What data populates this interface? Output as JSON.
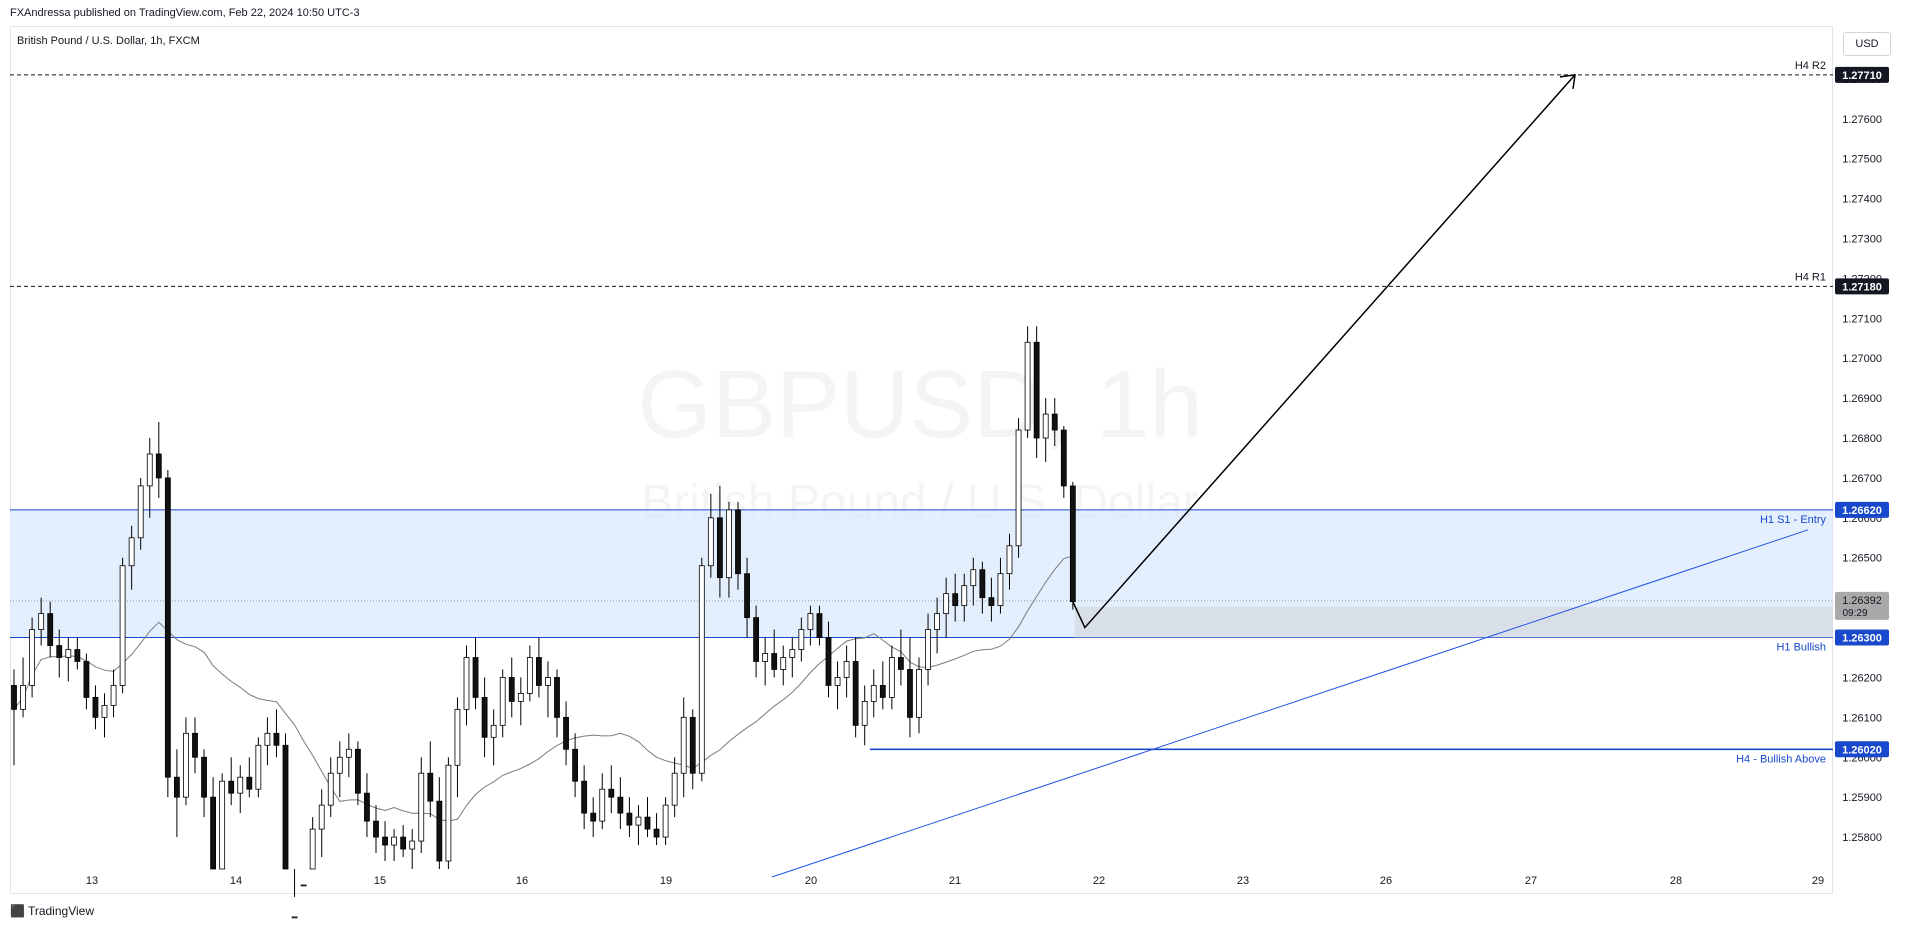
{
  "header": {
    "published_line": "FXAndressa published on TradingView.com, Feb 22, 2024 10:50 UTC-3",
    "symbol_title": "British Pound / U.S. Dollar, 1h, FXCM",
    "currency_button": "USD"
  },
  "watermark": {
    "main": "GBPUSD, 1h",
    "sub": "British Pound / U.S. Dollar"
  },
  "footer": {
    "brand": "TradingView"
  },
  "colors": {
    "bull": "#ffffff",
    "bear": "#000000",
    "candle_outline": "#000000",
    "zone_fill": "#dbeafc",
    "level_blue": "#1848cc",
    "ma_line": "#787b86",
    "current_price_tag": "#a9a9a9",
    "trend_line": "#1e53e5"
  },
  "chart_data": {
    "type": "candlestick",
    "symbol": "GBPUSD",
    "timeframe": "1h",
    "y_axis": {
      "ylim": [
        1.2572,
        1.2783
      ],
      "ticks": [
        "1.25800",
        "1.25900",
        "1.26000",
        "1.26100",
        "1.26200",
        "1.26300",
        "1.26400",
        "1.26500",
        "1.26600",
        "1.26700",
        "1.26800",
        "1.26900",
        "1.27000",
        "1.27100",
        "1.27200",
        "1.27300",
        "1.27400",
        "1.27500",
        "1.27600",
        "1.27700"
      ]
    },
    "x_axis": {
      "tick_labels": [
        "13",
        "14",
        "15",
        "16",
        "19",
        "20",
        "21",
        "22",
        "23",
        "26",
        "27",
        "28",
        "29"
      ]
    },
    "levels": [
      {
        "name": "H4 R2",
        "price": 1.2771,
        "price_label": "1.27710",
        "style": "dashed",
        "color": "#131722"
      },
      {
        "name": "H4 R1",
        "price": 1.2718,
        "price_label": "1.27180",
        "style": "dashed",
        "color": "#131722"
      },
      {
        "name": "H1 S1 - Entry",
        "price": 1.2662,
        "price_label": "1.26620",
        "style": "solid",
        "color": "#1848cc"
      },
      {
        "name": "H1 Bullish",
        "price": 1.263,
        "price_label": "1.26300",
        "style": "solid",
        "color": "#1848cc"
      },
      {
        "name": "H4 - Bullish Above",
        "price": 1.2602,
        "price_label": "1.26020",
        "style": "solid",
        "color": "#1848cc"
      }
    ],
    "zone": {
      "top": 1.2662,
      "bottom": 1.263
    },
    "current_price": {
      "price": 1.26392,
      "price_label": "1.26392",
      "countdown": "09:29"
    },
    "candles": [
      [
        1.2618,
        1.2622,
        1.2598,
        1.2612
      ],
      [
        1.2612,
        1.2625,
        1.261,
        1.2618
      ],
      [
        1.2618,
        1.2635,
        1.2615,
        1.2632
      ],
      [
        1.2632,
        1.264,
        1.2628,
        1.2636
      ],
      [
        1.2636,
        1.2639,
        1.2625,
        1.2628
      ],
      [
        1.2628,
        1.2632,
        1.262,
        1.2625
      ],
      [
        1.2625,
        1.263,
        1.2619,
        1.2627
      ],
      [
        1.2627,
        1.263,
        1.2622,
        1.2624
      ],
      [
        1.2624,
        1.2626,
        1.2612,
        1.2615
      ],
      [
        1.2615,
        1.2618,
        1.2607,
        1.261
      ],
      [
        1.261,
        1.2616,
        1.2605,
        1.2613
      ],
      [
        1.2613,
        1.2622,
        1.261,
        1.2618
      ],
      [
        1.2618,
        1.265,
        1.2616,
        1.2648
      ],
      [
        1.2648,
        1.2658,
        1.2642,
        1.2655
      ],
      [
        1.2655,
        1.267,
        1.2652,
        1.2668
      ],
      [
        1.2668,
        1.268,
        1.266,
        1.2676
      ],
      [
        1.2676,
        1.2684,
        1.2665,
        1.267
      ],
      [
        1.267,
        1.2672,
        1.259,
        1.2595
      ],
      [
        1.2595,
        1.2602,
        1.258,
        1.259
      ],
      [
        1.259,
        1.261,
        1.2588,
        1.2606
      ],
      [
        1.2606,
        1.261,
        1.2596,
        1.26
      ],
      [
        1.26,
        1.2602,
        1.2585,
        1.259
      ],
      [
        1.259,
        1.2595,
        1.256,
        1.2565
      ],
      [
        1.2565,
        1.2596,
        1.2562,
        1.2594
      ],
      [
        1.2594,
        1.26,
        1.2588,
        1.2591
      ],
      [
        1.2591,
        1.2598,
        1.2586,
        1.2595
      ],
      [
        1.2595,
        1.26,
        1.259,
        1.2592
      ],
      [
        1.2592,
        1.2605,
        1.259,
        1.2603
      ],
      [
        1.2603,
        1.261,
        1.2598,
        1.2606
      ],
      [
        1.2606,
        1.2612,
        1.26,
        1.2603
      ],
      [
        1.2603,
        1.2606,
        1.255,
        1.2555
      ],
      [
        1.2555,
        1.2565,
        1.2545,
        1.256
      ],
      [
        1.256,
        1.2572,
        1.2555,
        1.2568
      ],
      [
        1.2568,
        1.2585,
        1.2565,
        1.2582
      ],
      [
        1.2582,
        1.2592,
        1.2575,
        1.2588
      ],
      [
        1.2588,
        1.26,
        1.2585,
        1.2596
      ],
      [
        1.2596,
        1.2604,
        1.259,
        1.26
      ],
      [
        1.26,
        1.2606,
        1.2595,
        1.2602
      ],
      [
        1.2602,
        1.2604,
        1.2588,
        1.2591
      ],
      [
        1.2591,
        1.2596,
        1.258,
        1.2584
      ],
      [
        1.2584,
        1.2588,
        1.2576,
        1.258
      ],
      [
        1.258,
        1.2584,
        1.2574,
        1.2578
      ],
      [
        1.2578,
        1.2582,
        1.2574,
        1.258
      ],
      [
        1.258,
        1.2583,
        1.2575,
        1.2577
      ],
      [
        1.2577,
        1.2582,
        1.2572,
        1.2579
      ],
      [
        1.2579,
        1.26,
        1.2576,
        1.2596
      ],
      [
        1.2596,
        1.2604,
        1.2585,
        1.2589
      ],
      [
        1.2589,
        1.2595,
        1.257,
        1.2574
      ],
      [
        1.2574,
        1.26,
        1.2572,
        1.2598
      ],
      [
        1.2598,
        1.2615,
        1.259,
        1.2612
      ],
      [
        1.2612,
        1.2628,
        1.2608,
        1.2625
      ],
      [
        1.2625,
        1.263,
        1.2612,
        1.2615
      ],
      [
        1.2615,
        1.262,
        1.26,
        1.2605
      ],
      [
        1.2605,
        1.2612,
        1.2598,
        1.2608
      ],
      [
        1.2608,
        1.2622,
        1.2605,
        1.262
      ],
      [
        1.262,
        1.2625,
        1.261,
        1.2614
      ],
      [
        1.2614,
        1.262,
        1.2608,
        1.2616
      ],
      [
        1.2616,
        1.2628,
        1.2614,
        1.2625
      ],
      [
        1.2625,
        1.263,
        1.2615,
        1.2618
      ],
      [
        1.2618,
        1.2624,
        1.261,
        1.262
      ],
      [
        1.262,
        1.2622,
        1.2605,
        1.261
      ],
      [
        1.261,
        1.2614,
        1.2598,
        1.2602
      ],
      [
        1.2602,
        1.2606,
        1.259,
        1.2594
      ],
      [
        1.2594,
        1.2598,
        1.2582,
        1.2586
      ],
      [
        1.2586,
        1.259,
        1.258,
        1.2584
      ],
      [
        1.2584,
        1.2596,
        1.2582,
        1.2592
      ],
      [
        1.2592,
        1.2598,
        1.2586,
        1.259
      ],
      [
        1.259,
        1.2595,
        1.2582,
        1.2586
      ],
      [
        1.2586,
        1.259,
        1.258,
        1.2583
      ],
      [
        1.2583,
        1.2588,
        1.2578,
        1.2585
      ],
      [
        1.2585,
        1.259,
        1.258,
        1.2582
      ],
      [
        1.2582,
        1.2586,
        1.2578,
        1.258
      ],
      [
        1.258,
        1.259,
        1.2578,
        1.2588
      ],
      [
        1.2588,
        1.26,
        1.2585,
        1.2596
      ],
      [
        1.2596,
        1.2615,
        1.259,
        1.261
      ],
      [
        1.261,
        1.2612,
        1.2592,
        1.2596
      ],
      [
        1.2596,
        1.265,
        1.2594,
        1.2648
      ],
      [
        1.2648,
        1.2666,
        1.2645,
        1.266
      ],
      [
        1.266,
        1.2668,
        1.264,
        1.2645
      ],
      [
        1.2645,
        1.2664,
        1.264,
        1.2662
      ],
      [
        1.2662,
        1.2664,
        1.2642,
        1.2646
      ],
      [
        1.2646,
        1.265,
        1.263,
        1.2635
      ],
      [
        1.2635,
        1.2638,
        1.262,
        1.2624
      ],
      [
        1.2624,
        1.263,
        1.2618,
        1.2626
      ],
      [
        1.2626,
        1.2632,
        1.262,
        1.2622
      ],
      [
        1.2622,
        1.2628,
        1.2618,
        1.2625
      ],
      [
        1.2625,
        1.263,
        1.262,
        1.2627
      ],
      [
        1.2627,
        1.2635,
        1.2624,
        1.2632
      ],
      [
        1.2632,
        1.2638,
        1.2628,
        1.2636
      ],
      [
        1.2636,
        1.2638,
        1.2628,
        1.263
      ],
      [
        1.263,
        1.2634,
        1.2615,
        1.2618
      ],
      [
        1.2618,
        1.2624,
        1.2612,
        1.262
      ],
      [
        1.262,
        1.2628,
        1.2615,
        1.2624
      ],
      [
        1.2624,
        1.263,
        1.2605,
        1.2608
      ],
      [
        1.2608,
        1.2618,
        1.2603,
        1.2614
      ],
      [
        1.2614,
        1.2622,
        1.261,
        1.2618
      ],
      [
        1.2618,
        1.2624,
        1.2612,
        1.2615
      ],
      [
        1.2615,
        1.2628,
        1.2612,
        1.2625
      ],
      [
        1.2625,
        1.2632,
        1.2618,
        1.2622
      ],
      [
        1.2622,
        1.263,
        1.2605,
        1.261
      ],
      [
        1.261,
        1.2625,
        1.2606,
        1.2622
      ],
      [
        1.2622,
        1.2636,
        1.2618,
        1.2632
      ],
      [
        1.2632,
        1.264,
        1.2626,
        1.2636
      ],
      [
        1.2636,
        1.2645,
        1.263,
        1.2641
      ],
      [
        1.2641,
        1.2646,
        1.2634,
        1.2638
      ],
      [
        1.2638,
        1.2646,
        1.2634,
        1.2643
      ],
      [
        1.2643,
        1.265,
        1.2638,
        1.2647
      ],
      [
        1.2647,
        1.2649,
        1.2636,
        1.264
      ],
      [
        1.264,
        1.2645,
        1.2634,
        1.2638
      ],
      [
        1.2638,
        1.265,
        1.2636,
        1.2646
      ],
      [
        1.2646,
        1.2656,
        1.2642,
        1.2653
      ],
      [
        1.2653,
        1.2685,
        1.265,
        1.2682
      ],
      [
        1.2682,
        1.2708,
        1.268,
        1.2704
      ],
      [
        1.2704,
        1.2708,
        1.2675,
        1.268
      ],
      [
        1.268,
        1.269,
        1.2674,
        1.2686
      ],
      [
        1.2686,
        1.269,
        1.2678,
        1.2682
      ],
      [
        1.2682,
        1.2683,
        1.2665,
        1.2668
      ],
      [
        1.2668,
        1.2669,
        1.2637,
        1.2639
      ]
    ]
  },
  "drawings": {
    "projection_path": [
      [
        1.2639,
        0
      ],
      [
        1.2633,
        3
      ],
      [
        1.2771,
        1.3
      ]
    ],
    "trendline": {
      "start_price": 1.257,
      "end_price": 1.2657
    }
  }
}
